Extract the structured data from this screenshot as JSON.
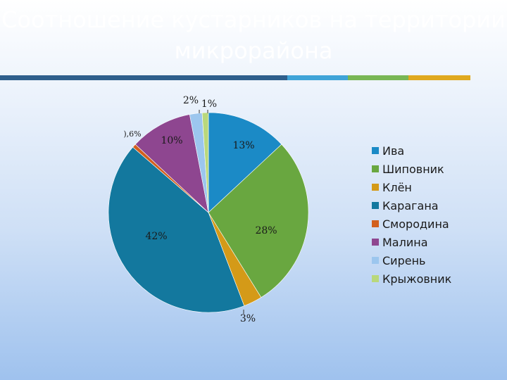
{
  "title": "Соотношение кустарников на территории микрорайона",
  "divider_colors": [
    "#2e5f8c",
    "#3fa4d8",
    "#78b654",
    "#e0a91f"
  ],
  "chart_data": {
    "type": "pie",
    "title": "",
    "slices": [
      {
        "name": "Ива",
        "value": 13,
        "label": "13%",
        "color": "#1b8ac6"
      },
      {
        "name": "Шиповник",
        "value": 28,
        "label": "28%",
        "color": "#69a740"
      },
      {
        "name": "Клён",
        "value": 3,
        "label": "3%",
        "color": "#d49a18"
      },
      {
        "name": "Карагана",
        "value": 42,
        "label": "42%",
        "color": "#13789e"
      },
      {
        "name": "Смородина",
        "value": 0.6,
        "label": "),6%",
        "color": "#d2601e"
      },
      {
        "name": "Малина",
        "value": 10,
        "label": "10%",
        "color": "#8e4690"
      },
      {
        "name": "Сирень",
        "value": 2,
        "label": "2%",
        "color": "#9cc6ee"
      },
      {
        "name": "Крыжовник",
        "value": 1,
        "label": "1%",
        "color": "#b9d87c"
      }
    ],
    "legend_position": "right"
  }
}
